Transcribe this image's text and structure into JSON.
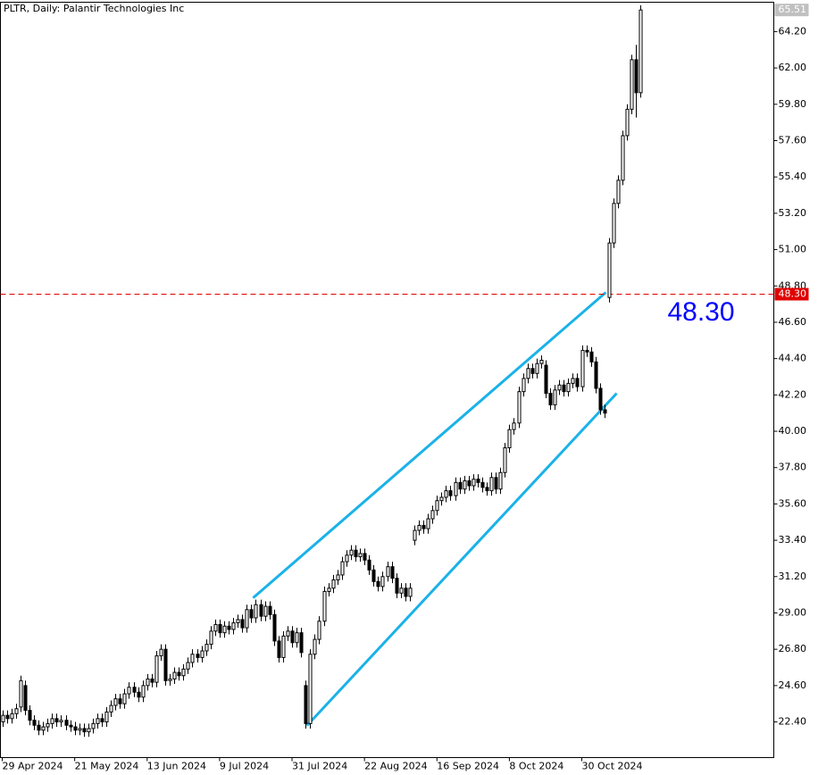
{
  "chart_data": {
    "type": "candlestick",
    "title": "PLTR, Daily:  Palantir Technologies Inc",
    "xlim": [
      -0.4,
      170.4
    ],
    "xticks": [
      {
        "value": 0,
        "label": "29 Apr 2024"
      },
      {
        "value": 16,
        "label": "21 May 2024"
      },
      {
        "value": 32,
        "label": "13 Jun 2024"
      },
      {
        "value": 48,
        "label": "9 Jul 2024"
      },
      {
        "value": 64,
        "label": "31 Jul 2024"
      },
      {
        "value": 80,
        "label": "22 Aug 2024"
      },
      {
        "value": 96,
        "label": "16 Sep 2024"
      },
      {
        "value": 112,
        "label": "8 Oct 2024"
      },
      {
        "value": 128,
        "label": "30 Oct 2024"
      }
    ],
    "ylim": [
      20.24,
      65.98
    ],
    "yticks": [
      {
        "value": 22.4,
        "label": "22.40"
      },
      {
        "value": 24.6,
        "label": "24.60"
      },
      {
        "value": 26.8,
        "label": "26.80"
      },
      {
        "value": 29,
        "label": "29.00"
      },
      {
        "value": 31.2,
        "label": "31.20"
      },
      {
        "value": 33.4,
        "label": "33.40"
      },
      {
        "value": 35.6,
        "label": "35.60"
      },
      {
        "value": 37.8,
        "label": "37.80"
      },
      {
        "value": 40,
        "label": "40.00"
      },
      {
        "value": 42.2,
        "label": "42.20"
      },
      {
        "value": 44.4,
        "label": "44.40"
      },
      {
        "value": 46.6,
        "label": "46.60"
      },
      {
        "value": 48.8,
        "label": "48.80"
      },
      {
        "value": 51,
        "label": "51.00"
      },
      {
        "value": 53.2,
        "label": "53.20"
      },
      {
        "value": 55.4,
        "label": "55.40"
      },
      {
        "value": 57.6,
        "label": "57.60"
      },
      {
        "value": 59.8,
        "label": "59.80"
      },
      {
        "value": 62,
        "label": "62.00"
      },
      {
        "value": 64.2,
        "label": "64.20"
      }
    ],
    "open": [
      22.4,
      22.8,
      22.6,
      22.9,
      23.3,
      24.6,
      23.1,
      22.5,
      22.2,
      21.9,
      22.1,
      22.3,
      22.6,
      22.4,
      22.5,
      22.2,
      22.1,
      21.9,
      22.0,
      21.8,
      22.0,
      22.3,
      22.6,
      22.4,
      23.0,
      23.4,
      23.8,
      23.5,
      24.1,
      24.5,
      24.2,
      23.9,
      24.6,
      25.0,
      24.8,
      26.4,
      26.8,
      24.9,
      25.0,
      25.4,
      25.2,
      25.6,
      26.0,
      26.5,
      26.3,
      26.7,
      27.1,
      27.9,
      28.3,
      27.8,
      28.2,
      28.0,
      28.4,
      28.6,
      28.1,
      29.2,
      28.7,
      29.5,
      28.8,
      29.4,
      28.9,
      27.3,
      26.3,
      27.6,
      27.9,
      27.2,
      27.8,
      24.6,
      22.3,
      26.5,
      27.4,
      28.5,
      30.3,
      30.5,
      31.0,
      31.3,
      32.1,
      32.5,
      32.8,
      32.4,
      32.6,
      32.2,
      31.6,
      30.9,
      30.6,
      31.2,
      31.8,
      31.1,
      30.2,
      30.5,
      30.0,
      33.4,
      34.0,
      34.3,
      34.1,
      34.7,
      35.2,
      35.8,
      36.0,
      36.4,
      36.1,
      36.9,
      36.5,
      37.0,
      36.7,
      37.1,
      36.9,
      36.6,
      36.4,
      37.2,
      36.5,
      37.5,
      39.0,
      40.1,
      40.5,
      42.4,
      43.2,
      43.8,
      43.5,
      44.1,
      44.0,
      42.3,
      41.6,
      42.5,
      42.8,
      42.4,
      42.9,
      43.2,
      42.7,
      44.9,
      44.8,
      44.2,
      42.6,
      41.3,
      48.1,
      51.4,
      53.8,
      55.2,
      57.9,
      59.5,
      62.5,
      60.5
    ],
    "high": [
      23.1,
      23.1,
      23.2,
      23.5,
      25.2,
      24.9,
      23.4,
      22.8,
      22.5,
      22.4,
      22.6,
      22.9,
      22.9,
      22.8,
      22.8,
      22.5,
      22.4,
      22.3,
      22.3,
      22.3,
      22.6,
      22.9,
      22.9,
      23.3,
      23.7,
      24.1,
      24.1,
      24.4,
      24.8,
      24.8,
      24.5,
      24.9,
      25.3,
      25.3,
      26.7,
      27.1,
      27.1,
      25.3,
      25.7,
      25.7,
      25.9,
      26.3,
      26.8,
      26.8,
      27.0,
      27.4,
      28.2,
      28.6,
      28.6,
      28.5,
      28.5,
      28.7,
      28.9,
      28.9,
      29.5,
      29.5,
      29.8,
      29.8,
      29.7,
      29.7,
      29.2,
      27.6,
      27.9,
      28.2,
      28.2,
      28.1,
      28.1,
      24.9,
      26.8,
      27.7,
      28.8,
      30.6,
      30.8,
      31.3,
      31.6,
      32.4,
      32.8,
      33.1,
      33.1,
      32.9,
      32.9,
      32.5,
      31.9,
      31.2,
      31.5,
      32.1,
      32.1,
      31.4,
      30.8,
      30.8,
      30.8,
      34.3,
      34.6,
      34.6,
      35.0,
      35.5,
      36.1,
      36.3,
      36.7,
      36.7,
      37.2,
      37.2,
      37.3,
      37.3,
      37.4,
      37.4,
      37.2,
      36.9,
      37.5,
      37.5,
      37.8,
      39.3,
      40.4,
      40.8,
      42.7,
      43.5,
      44.1,
      44.1,
      44.4,
      44.6,
      44.3,
      42.6,
      42.8,
      43.1,
      43.1,
      43.2,
      43.5,
      43.5,
      45.2,
      45.2,
      45.1,
      44.5,
      42.9,
      41.6,
      51.7,
      54.1,
      55.5,
      58.2,
      59.8,
      62.8,
      63.4,
      65.8
    ],
    "low": [
      22.1,
      22.3,
      22.3,
      22.6,
      23.0,
      22.8,
      22.2,
      21.9,
      21.6,
      21.6,
      21.8,
      22.0,
      22.1,
      22.1,
      21.9,
      21.8,
      21.6,
      21.6,
      21.5,
      21.5,
      21.7,
      22.0,
      22.1,
      22.1,
      22.7,
      23.1,
      23.2,
      23.2,
      23.8,
      23.9,
      23.6,
      23.6,
      24.3,
      24.5,
      24.5,
      26.1,
      24.6,
      24.6,
      24.7,
      24.9,
      24.9,
      25.3,
      25.7,
      26.0,
      26.0,
      26.4,
      26.8,
      27.6,
      27.5,
      27.5,
      27.7,
      27.7,
      28.1,
      27.8,
      27.8,
      28.4,
      28.4,
      28.5,
      28.5,
      28.6,
      27.0,
      26.0,
      26.0,
      27.3,
      26.9,
      26.9,
      26.3,
      22.0,
      22.0,
      26.2,
      27.1,
      28.2,
      30.0,
      30.2,
      30.7,
      31.0,
      31.8,
      32.2,
      32.1,
      32.1,
      31.9,
      31.3,
      30.6,
      30.3,
      30.3,
      30.9,
      30.8,
      29.9,
      29.9,
      29.7,
      29.7,
      33.1,
      33.7,
      33.8,
      33.8,
      34.4,
      34.9,
      35.5,
      35.7,
      35.8,
      35.8,
      36.2,
      36.2,
      36.4,
      36.4,
      36.6,
      36.3,
      36.1,
      36.1,
      36.2,
      36.2,
      37.2,
      38.7,
      39.8,
      40.2,
      42.1,
      42.9,
      43.2,
      43.2,
      43.8,
      42.0,
      41.3,
      41.3,
      42.2,
      42.1,
      42.1,
      42.6,
      42.4,
      42.4,
      44.5,
      43.9,
      42.3,
      41.0,
      40.8,
      47.8,
      51.1,
      53.5,
      54.9,
      57.6,
      59.2,
      59.0,
      60.2
    ],
    "close": [
      22.8,
      22.6,
      22.9,
      23.2,
      24.9,
      23.1,
      22.5,
      22.2,
      21.9,
      22.1,
      22.3,
      22.6,
      22.4,
      22.5,
      22.2,
      22.1,
      21.9,
      22.0,
      21.8,
      22.0,
      22.3,
      22.6,
      22.4,
      23.0,
      23.4,
      23.8,
      23.5,
      24.1,
      24.5,
      24.2,
      23.9,
      24.6,
      25.0,
      24.8,
      26.4,
      26.8,
      24.9,
      25.0,
      25.4,
      25.2,
      25.6,
      26.0,
      26.5,
      26.3,
      26.7,
      27.1,
      27.9,
      28.3,
      27.8,
      28.2,
      28.0,
      28.4,
      28.6,
      28.1,
      29.2,
      28.7,
      29.5,
      28.8,
      29.4,
      28.9,
      27.3,
      26.3,
      27.6,
      27.9,
      27.2,
      27.8,
      26.6,
      22.3,
      26.5,
      27.4,
      28.5,
      30.3,
      30.5,
      31.0,
      31.3,
      32.1,
      32.5,
      32.8,
      32.4,
      32.6,
      32.2,
      31.6,
      30.9,
      30.6,
      31.2,
      31.8,
      31.1,
      30.2,
      30.5,
      30.0,
      30.5,
      34.0,
      34.3,
      34.1,
      34.7,
      35.2,
      35.8,
      36.0,
      36.4,
      36.1,
      36.9,
      36.5,
      37.0,
      36.7,
      37.1,
      36.9,
      36.6,
      36.4,
      37.2,
      36.5,
      37.5,
      39.0,
      40.1,
      40.5,
      42.4,
      43.2,
      43.8,
      43.5,
      44.1,
      44.3,
      42.3,
      41.6,
      42.5,
      42.8,
      42.4,
      42.9,
      43.2,
      42.7,
      44.9,
      44.8,
      44.2,
      42.6,
      41.3,
      41.1,
      51.4,
      53.8,
      55.2,
      57.9,
      59.5,
      62.5,
      60.5,
      65.51
    ],
    "up_color": "#ffffff",
    "down_color": "#000000",
    "last_price": 65.51,
    "hline": {
      "value": 48.3,
      "label": "48.30",
      "color": "#e00000"
    },
    "annotation": "48.30",
    "trendline_color": "#1ab2e8",
    "trendlines": [
      [
        [
          55.4,
          29.91
        ],
        [
          133.3,
          48.41
        ]
      ],
      [
        [
          67.3,
          22.18
        ],
        [
          135.7,
          42.3
        ]
      ]
    ]
  }
}
